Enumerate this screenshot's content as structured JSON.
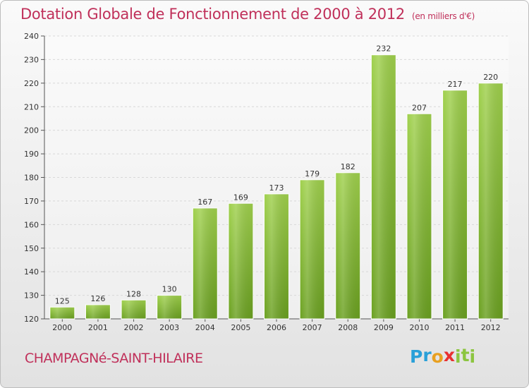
{
  "chart_data": {
    "type": "bar",
    "title": "Dotation Globale de Fonctionnement de 2000 à 2012",
    "unit": "(en milliers d'€)",
    "categories": [
      "2000",
      "2001",
      "2002",
      "2003",
      "2004",
      "2005",
      "2006",
      "2007",
      "2008",
      "2009",
      "2010",
      "2011",
      "2012"
    ],
    "values": [
      125,
      126,
      128,
      130,
      167,
      169,
      173,
      179,
      182,
      232,
      207,
      217,
      220
    ],
    "ylim": [
      120,
      240
    ],
    "yticks": [
      120,
      130,
      140,
      150,
      160,
      170,
      180,
      190,
      200,
      210,
      220,
      230,
      240
    ],
    "grid": true,
    "colors": {
      "bar_light": "#9fd04c",
      "bar_dark": "#6aa020",
      "title": "#c0305a"
    }
  },
  "commune": "CHAMPAGNé-SAINT-HILAIRE",
  "logo": {
    "letters": [
      "P",
      "r",
      "o",
      "x",
      "i",
      "t",
      "i"
    ],
    "colors": [
      "#2aa0d8",
      "#2aa0d8",
      "#e8a020",
      "#e83030",
      "#8cc540",
      "#8cc540",
      "#8cc540"
    ]
  }
}
